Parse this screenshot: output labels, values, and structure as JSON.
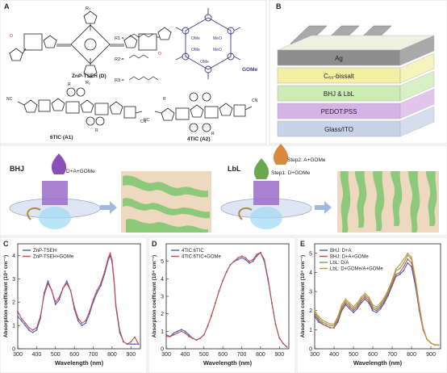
{
  "panels": {
    "a": {
      "letter": "A",
      "label_d": "ZnP-TSEH (D)",
      "r1": "R1 =",
      "r2": "R2 =",
      "r3": "R3 =",
      "ome": "OMe",
      "meo": "MeO",
      "gome": "GOMe",
      "label_a1": "6TIC (A1)",
      "label_a2": "4TIC (A2)",
      "sub_r": "R",
      "sub_r1": "R₁",
      "sub_r2": "R₂",
      "sub_r3": "R₃",
      "nc": "NC",
      "cn": "CN"
    },
    "b": {
      "letter": "B",
      "layers": [
        "Ag",
        "C₆₀-bissalt",
        "BHJ & LbL",
        "PEDOT:PSS",
        "Glass/ITO"
      ],
      "colors": [
        "#8d8d8d",
        "#f3f0a6",
        "#cdebb4",
        "#d6b3e6",
        "#c6d3e8"
      ]
    },
    "bhj": {
      "title": "BHJ",
      "drop_label": "D+A+GOMe"
    },
    "lbl": {
      "title": "LbL",
      "step1": "Step1: D+GOMe",
      "step2": "Step2: A+GOMe"
    },
    "c": {
      "letter": "C"
    },
    "d": {
      "letter": "D"
    },
    "e": {
      "letter": "E"
    }
  },
  "chart_data": [
    {
      "type": "line",
      "panel": "C",
      "xlabel": "Wavelength (nm)",
      "ylabel": "Absorption coefficient (10⁴ cm⁻¹)",
      "xlim": [
        300,
        950
      ],
      "ylim": [
        0,
        4.5
      ],
      "xticks": [
        300,
        400,
        500,
        600,
        700,
        800,
        900
      ],
      "yticks": [
        0,
        1,
        2,
        3,
        4
      ],
      "legend": "top-left",
      "series": [
        {
          "name": "ZnP-TSEH",
          "color": "#4a5dbd",
          "x": [
            300,
            320,
            340,
            360,
            380,
            400,
            420,
            440,
            460,
            480,
            500,
            520,
            540,
            560,
            580,
            600,
            620,
            640,
            660,
            680,
            700,
            720,
            740,
            760,
            780,
            790,
            800,
            810,
            820,
            840,
            860,
            880,
            900,
            920,
            940
          ],
          "y": [
            1.4,
            1.2,
            1.0,
            0.8,
            0.7,
            0.8,
            1.3,
            2.4,
            2.9,
            2.5,
            1.9,
            2.1,
            2.6,
            2.9,
            2.5,
            1.7,
            1.2,
            1.0,
            1.1,
            1.5,
            2.0,
            2.4,
            2.7,
            3.2,
            3.8,
            4.0,
            3.7,
            2.9,
            1.8,
            0.7,
            0.3,
            0.2,
            0.2,
            0.2,
            0.2
          ]
        },
        {
          "name": "ZnP-TSEH+GOMe",
          "color": "#c94a4a",
          "x": [
            300,
            320,
            340,
            360,
            380,
            400,
            420,
            440,
            460,
            480,
            500,
            520,
            540,
            560,
            580,
            600,
            620,
            640,
            660,
            680,
            700,
            720,
            740,
            760,
            780,
            790,
            800,
            810,
            820,
            840,
            860,
            880,
            900,
            920,
            940
          ],
          "y": [
            1.6,
            1.3,
            1.1,
            0.9,
            0.8,
            0.9,
            1.4,
            2.3,
            2.8,
            2.5,
            2.0,
            2.2,
            2.6,
            2.8,
            2.5,
            1.8,
            1.3,
            1.1,
            1.2,
            1.6,
            2.1,
            2.5,
            2.8,
            3.3,
            3.9,
            4.1,
            3.8,
            3.0,
            1.9,
            0.8,
            0.3,
            0.2,
            0.3,
            0.5,
            0.2
          ]
        }
      ]
    },
    {
      "type": "line",
      "panel": "D",
      "xlabel": "Wavelength (nm)",
      "ylabel": "Absorption coefficient (10⁴ cm⁻¹)",
      "xlim": [
        300,
        950
      ],
      "ylim": [
        0,
        6
      ],
      "xticks": [
        300,
        400,
        500,
        600,
        700,
        800,
        900
      ],
      "yticks": [
        0,
        1,
        2,
        3,
        4,
        5
      ],
      "legend": "top-left",
      "series": [
        {
          "name": "4TIC:6TIC",
          "color": "#4a5dbd",
          "x": [
            300,
            320,
            340,
            360,
            380,
            400,
            420,
            440,
            460,
            480,
            500,
            520,
            540,
            560,
            580,
            600,
            620,
            640,
            660,
            680,
            700,
            720,
            740,
            760,
            780,
            800,
            820,
            840,
            860,
            880,
            900,
            920,
            940
          ],
          "y": [
            0.8,
            0.7,
            0.9,
            1.0,
            1.1,
            1.0,
            0.8,
            0.6,
            0.5,
            0.6,
            0.8,
            1.3,
            1.9,
            2.6,
            3.3,
            3.9,
            4.4,
            4.8,
            5.0,
            5.1,
            5.2,
            5.1,
            4.9,
            5.0,
            5.3,
            5.5,
            5.0,
            3.9,
            2.6,
            1.4,
            0.6,
            0.3,
            0.1
          ]
        },
        {
          "name": "4TIC:6TIC+GOMe",
          "color": "#c94a4a",
          "x": [
            300,
            320,
            340,
            360,
            380,
            400,
            420,
            440,
            460,
            480,
            500,
            520,
            540,
            560,
            580,
            600,
            620,
            640,
            660,
            680,
            700,
            720,
            740,
            760,
            780,
            800,
            820,
            840,
            860,
            880,
            900,
            920,
            940
          ],
          "y": [
            0.7,
            0.7,
            0.8,
            0.9,
            1.0,
            0.9,
            0.7,
            0.6,
            0.5,
            0.6,
            0.8,
            1.3,
            1.9,
            2.6,
            3.3,
            3.9,
            4.4,
            4.8,
            5.0,
            5.2,
            5.3,
            5.2,
            5.0,
            5.1,
            5.4,
            5.5,
            5.1,
            4.0,
            2.6,
            1.4,
            0.6,
            0.3,
            0.1
          ]
        }
      ]
    },
    {
      "type": "line",
      "panel": "E",
      "xlabel": "Wavelength (nm)",
      "ylabel": "Absorption coefficient (10⁴ cm⁻¹)",
      "xlim": [
        300,
        950
      ],
      "ylim": [
        0,
        5.5
      ],
      "xticks": [
        300,
        400,
        500,
        600,
        700,
        800,
        900
      ],
      "yticks": [
        0,
        1,
        2,
        3,
        4,
        5
      ],
      "legend": "top-left",
      "series": [
        {
          "name": "BHJ: D+A",
          "color": "#4a5dbd",
          "x": [
            300,
            320,
            340,
            360,
            380,
            400,
            420,
            440,
            460,
            480,
            500,
            520,
            540,
            560,
            580,
            600,
            620,
            640,
            660,
            680,
            700,
            720,
            740,
            760,
            780,
            800,
            820,
            840,
            860,
            880,
            900,
            920,
            940
          ],
          "y": [
            1.7,
            1.4,
            1.3,
            1.2,
            1.1,
            1.1,
            1.4,
            2.0,
            2.3,
            2.1,
            1.9,
            2.1,
            2.4,
            2.6,
            2.4,
            2.0,
            1.9,
            2.1,
            2.4,
            2.8,
            3.3,
            3.8,
            3.9,
            4.1,
            4.5,
            4.3,
            3.3,
            2.0,
            1.0,
            0.5,
            0.3,
            0.2,
            0.2
          ]
        },
        {
          "name": "BHJ: D+A+GOMe",
          "color": "#c94a4a",
          "x": [
            300,
            320,
            340,
            360,
            380,
            400,
            420,
            440,
            460,
            480,
            500,
            520,
            540,
            560,
            580,
            600,
            620,
            640,
            660,
            680,
            700,
            720,
            740,
            760,
            780,
            800,
            820,
            840,
            860,
            880,
            900,
            920,
            940
          ],
          "y": [
            1.8,
            1.5,
            1.3,
            1.2,
            1.1,
            1.1,
            1.5,
            2.1,
            2.4,
            2.2,
            2.0,
            2.2,
            2.5,
            2.7,
            2.5,
            2.1,
            2.0,
            2.2,
            2.5,
            2.9,
            3.4,
            3.9,
            4.0,
            4.3,
            4.7,
            4.5,
            3.5,
            2.1,
            1.0,
            0.5,
            0.3,
            0.2,
            0.2
          ]
        },
        {
          "name": "LbL: D/A",
          "color": "#6aa84f",
          "x": [
            300,
            320,
            340,
            360,
            380,
            400,
            420,
            440,
            460,
            480,
            500,
            520,
            540,
            560,
            580,
            600,
            620,
            640,
            660,
            680,
            700,
            720,
            740,
            760,
            780,
            800,
            820,
            840,
            860,
            880,
            900,
            920,
            940
          ],
          "y": [
            1.9,
            1.6,
            1.4,
            1.3,
            1.2,
            1.2,
            1.6,
            2.2,
            2.5,
            2.3,
            2.1,
            2.3,
            2.6,
            2.8,
            2.6,
            2.2,
            2.1,
            2.3,
            2.6,
            3.0,
            3.5,
            4.1,
            4.2,
            4.5,
            4.9,
            4.7,
            3.6,
            2.2,
            1.1,
            0.5,
            0.3,
            0.2,
            0.2
          ]
        },
        {
          "name": "LbL: D+GOMe/A+GOMe",
          "color": "#d98c3a",
          "x": [
            300,
            320,
            340,
            360,
            380,
            400,
            420,
            440,
            460,
            480,
            500,
            520,
            540,
            560,
            580,
            600,
            620,
            640,
            660,
            680,
            700,
            720,
            740,
            760,
            780,
            800,
            820,
            840,
            860,
            880,
            900,
            920,
            940
          ],
          "y": [
            2.0,
            1.7,
            1.5,
            1.4,
            1.3,
            1.3,
            1.7,
            2.3,
            2.6,
            2.4,
            2.2,
            2.4,
            2.7,
            2.9,
            2.7,
            2.3,
            2.2,
            2.4,
            2.7,
            3.1,
            3.6,
            4.2,
            4.4,
            4.7,
            5.0,
            4.8,
            3.7,
            2.3,
            1.1,
            0.5,
            0.3,
            0.2,
            0.2
          ]
        }
      ]
    }
  ]
}
